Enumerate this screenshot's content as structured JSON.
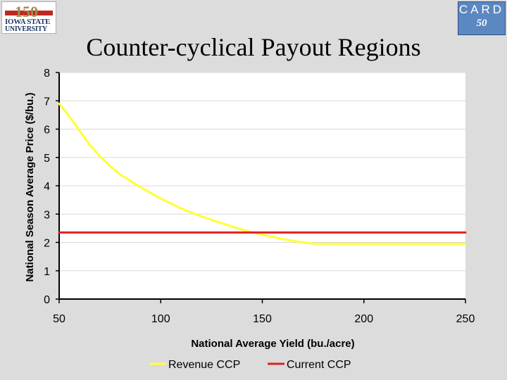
{
  "logos": {
    "isu": {
      "line1": "150",
      "line2": "IOWA STATE",
      "line3": "UNIVERSITY"
    },
    "card": {
      "word": "CARD",
      "badge": "50"
    }
  },
  "page_title": "Counter-cyclical Payout Regions",
  "colors": {
    "revenue": "#ffff33",
    "current": "#e02020",
    "plot_bg": "#ffffff",
    "grid": "#d8d8d8"
  },
  "chart_data": {
    "type": "line",
    "title": "Counter-cyclical Payout Regions",
    "xlabel": "National Average Yield (bu./acre)",
    "ylabel": "National Season Average Price ($/bu.)",
    "xlim": [
      50,
      250
    ],
    "ylim": [
      0,
      8
    ],
    "x_ticks": [
      "50",
      "100",
      "150",
      "200",
      "250"
    ],
    "y_ticks": [
      "0",
      "1",
      "2",
      "3",
      "4",
      "5",
      "6",
      "7",
      "8"
    ],
    "grid": true,
    "legend_position": "bottom",
    "series": [
      {
        "name": "Revenue CCP",
        "x": [
          50,
          55,
          60,
          65,
          70,
          75,
          80,
          90,
          100,
          110,
          120,
          130,
          140,
          150,
          160,
          170,
          175,
          180,
          190,
          200,
          220,
          250
        ],
        "y": [
          6.9,
          6.45,
          5.95,
          5.45,
          5.05,
          4.7,
          4.4,
          3.95,
          3.55,
          3.2,
          2.92,
          2.68,
          2.45,
          2.27,
          2.12,
          2.0,
          1.96,
          1.95,
          1.95,
          1.95,
          1.95,
          1.95
        ]
      },
      {
        "name": "Current CCP",
        "x": [
          50,
          250
        ],
        "y": [
          2.35,
          2.35
        ]
      }
    ]
  }
}
